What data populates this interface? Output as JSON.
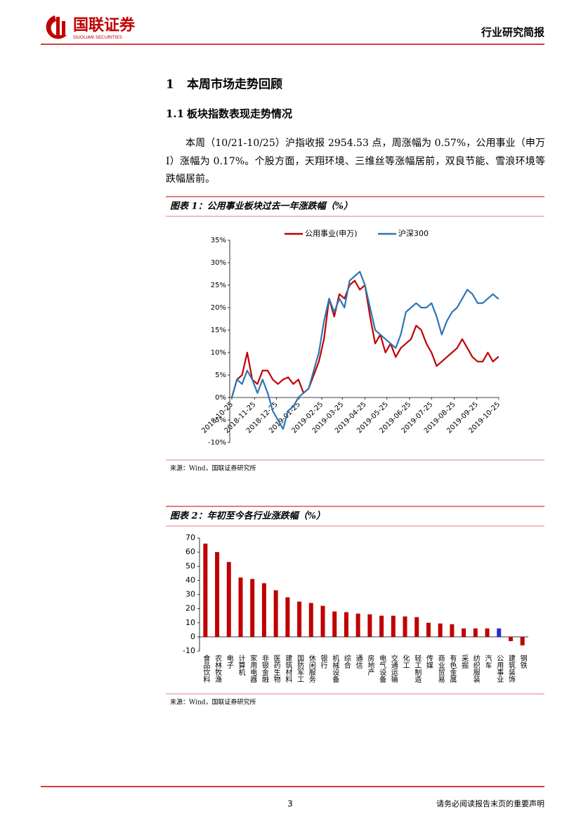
{
  "header": {
    "logo_cn": "国联证券",
    "logo_en": "GUOLIAN SECURITIES",
    "report_type": "行业研究简报"
  },
  "section": {
    "number": "1",
    "title": "本周市场走势回顾"
  },
  "subsection": {
    "number": "1.1",
    "title": "板块指数表现走势情况"
  },
  "paragraph": "本周（10/21-10/25）沪指收报 2954.53 点，周涨幅为 0.57%，公用事业（申万I）涨幅为 0.17%。个股方面，天翔环境、三维丝等涨幅居前，双良节能、雪浪环境等跌幅居前。",
  "figure1": {
    "caption": "图表 1：公用事业板块过去一年涨跌幅（%）",
    "source": "来源：Wind，国联证券研究所"
  },
  "figure2": {
    "caption": "图表 2：年初至今各行业涨跌幅（%）",
    "source": "来源：Wind，国联证券研究所"
  },
  "footer": {
    "page": "3",
    "disclaimer": "请务必阅读报告末页的重要声明"
  },
  "chart_data": [
    {
      "type": "line",
      "x": [
        "2018-10-25",
        "2018-11-01",
        "2018-11-08",
        "2018-11-15",
        "2018-11-22",
        "2018-11-29",
        "2018-12-06",
        "2018-12-13",
        "2018-12-20",
        "2018-12-27",
        "2019-01-03",
        "2019-01-10",
        "2019-01-17",
        "2019-01-24",
        "2019-01-31",
        "2019-02-07",
        "2019-02-14",
        "2019-02-21",
        "2019-02-28",
        "2019-03-07",
        "2019-03-14",
        "2019-03-21",
        "2019-03-28",
        "2019-04-04",
        "2019-04-11",
        "2019-04-18",
        "2019-04-25",
        "2019-05-02",
        "2019-05-09",
        "2019-05-16",
        "2019-05-23",
        "2019-05-30",
        "2019-06-06",
        "2019-06-13",
        "2019-06-20",
        "2019-06-27",
        "2019-07-04",
        "2019-07-11",
        "2019-07-18",
        "2019-07-25",
        "2019-08-01",
        "2019-08-08",
        "2019-08-15",
        "2019-08-22",
        "2019-08-29",
        "2019-09-05",
        "2019-09-12",
        "2019-09-19",
        "2019-09-26",
        "2019-10-03",
        "2019-10-10",
        "2019-10-17",
        "2019-10-24",
        "2019-10-25"
      ],
      "series": [
        {
          "name": "公用事业(申万)",
          "color": "#c00000",
          "values": [
            0,
            4,
            5,
            10,
            4,
            3,
            6,
            6,
            4,
            3,
            4,
            4.5,
            3,
            4,
            1,
            2,
            5,
            8,
            13,
            22,
            18,
            23,
            22,
            25,
            26,
            24,
            25,
            18,
            12,
            14,
            10,
            12,
            9,
            11,
            12,
            13,
            16,
            15,
            12,
            10,
            7,
            8,
            9,
            10,
            11,
            13,
            11,
            9,
            8,
            8,
            10,
            8,
            9,
            9
          ]
        },
        {
          "name": "沪深300",
          "color": "#2e75b6",
          "values": [
            0,
            4,
            3,
            6,
            4,
            1,
            4,
            1,
            -3,
            -5,
            -7,
            -3,
            -2,
            0,
            1,
            2,
            6,
            10,
            17,
            22,
            19,
            22,
            20,
            26,
            27,
            28,
            25,
            20,
            15,
            14,
            13,
            12,
            11,
            14,
            19,
            20,
            21,
            20,
            20,
            21,
            18,
            14,
            17,
            19,
            20,
            22,
            24,
            23,
            21,
            21,
            22,
            23,
            22,
            22
          ]
        }
      ],
      "xlim": [
        "2018-10-25",
        "2019-10-25"
      ],
      "xticks": [
        "2018-10-25",
        "2018-11-25",
        "2018-12-25",
        "2019-01-25",
        "2019-02-25",
        "2019-03-25",
        "2019-04-25",
        "2019-05-25",
        "2019-06-25",
        "2019-07-25",
        "2019-08-25",
        "2019-09-25",
        "2019-10-25"
      ],
      "ylim": [
        -10,
        35
      ],
      "yticks": [
        {
          "value": -10,
          "label": "-10%"
        },
        {
          "value": -5,
          "label": "-5%"
        },
        {
          "value": 0,
          "label": "0%"
        },
        {
          "value": 5,
          "label": "5%"
        },
        {
          "value": 10,
          "label": "10%"
        },
        {
          "value": 15,
          "label": "15%"
        },
        {
          "value": 20,
          "label": "20%"
        },
        {
          "value": 25,
          "label": "25%"
        },
        {
          "value": 30,
          "label": "30%"
        },
        {
          "value": 35,
          "label": "35%"
        }
      ],
      "grid": false
    },
    {
      "type": "bar",
      "categories": [
        "食品饮料",
        "农林牧渔",
        "电子",
        "计算机",
        "家用电器",
        "非银金融",
        "医药生物",
        "建筑材料",
        "国防军工",
        "休闲服务",
        "银行",
        "机械设备",
        "综合",
        "通信",
        "房地产",
        "电气设备",
        "交通运输",
        "化工",
        "轻工制造",
        "传媒",
        "商业贸易",
        "有色金属",
        "采掘",
        "纺织服装",
        "汽车",
        "公用事业",
        "建筑装饰",
        "钢铁"
      ],
      "values": [
        66,
        60,
        53,
        42,
        41,
        38,
        33,
        28,
        25,
        24,
        22,
        18,
        17.5,
        16.5,
        16,
        15,
        15,
        14.5,
        14,
        10,
        9.5,
        9,
        6,
        6,
        6,
        6,
        -3,
        -6
      ],
      "colors": [
        "#c00000",
        "#c00000",
        "#c00000",
        "#c00000",
        "#c00000",
        "#c00000",
        "#c00000",
        "#c00000",
        "#c00000",
        "#c00000",
        "#c00000",
        "#c00000",
        "#c00000",
        "#c00000",
        "#c00000",
        "#c00000",
        "#c00000",
        "#c00000",
        "#c00000",
        "#c00000",
        "#c00000",
        "#c00000",
        "#c00000",
        "#c00000",
        "#c00000",
        "#2b2bd0",
        "#c00000",
        "#c00000"
      ],
      "ylim": [
        -10,
        70
      ],
      "yticks": [
        -10,
        0,
        10,
        20,
        30,
        40,
        50,
        60,
        70
      ],
      "grid": false
    }
  ]
}
